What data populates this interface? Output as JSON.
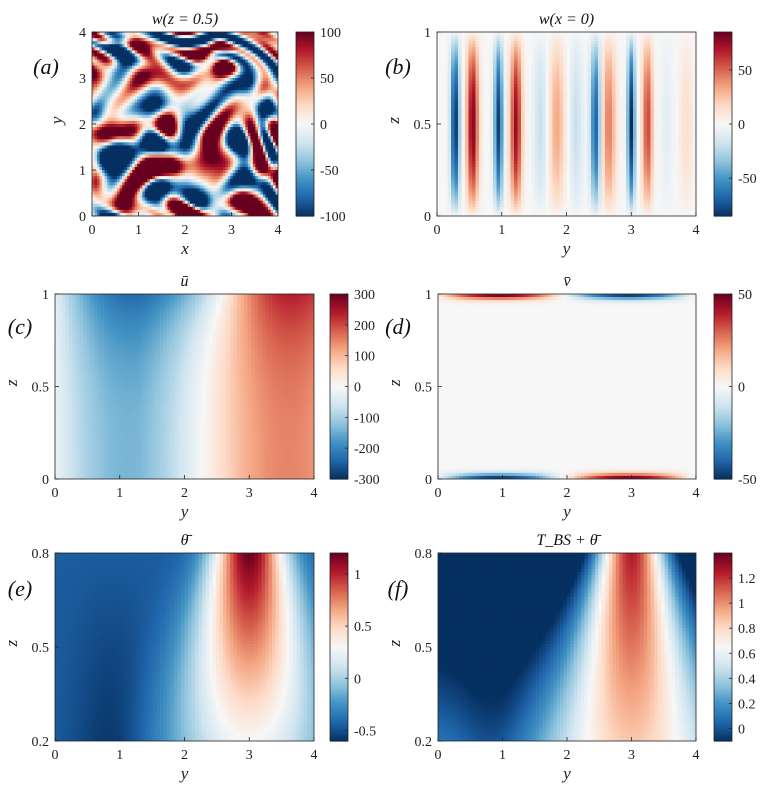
{
  "colormap": {
    "low": "#053061",
    "mid": "#f7f7f7",
    "high": "#67001f"
  },
  "chart_data": [
    {
      "panel": "(a)",
      "type": "heatmap",
      "title": "w(z = 0.5)",
      "xlabel": "x",
      "ylabel": "y",
      "xlim": [
        0,
        4
      ],
      "ylim": [
        0,
        4
      ],
      "xticks": [
        "0",
        "1",
        "2",
        "3",
        "4"
      ],
      "yticks": [
        "0",
        "1",
        "2",
        "3",
        "4"
      ],
      "clim": [
        -100,
        100
      ],
      "cbar_ticks": [
        "-100",
        "-50",
        "0",
        "50",
        "100"
      ],
      "pattern": "turbulent"
    },
    {
      "panel": "(b)",
      "type": "heatmap",
      "title": "w(x = 0)",
      "xlabel": "y",
      "ylabel": "z",
      "xlim": [
        0,
        4
      ],
      "ylim": [
        0,
        1
      ],
      "xticks": [
        "0",
        "1",
        "2",
        "3",
        "4"
      ],
      "yticks": [
        "0",
        "0.5",
        "1"
      ],
      "clim": [
        -85,
        85
      ],
      "cbar_ticks": [
        "-50",
        "0",
        "50"
      ],
      "pattern": "vertical-stripes"
    },
    {
      "panel": "(c)",
      "type": "heatmap",
      "title": "ū",
      "xlabel": "y",
      "ylabel": "z",
      "xlim": [
        0,
        4
      ],
      "ylim": [
        0,
        1
      ],
      "xticks": [
        "0",
        "1",
        "2",
        "3",
        "4"
      ],
      "yticks": [
        "0",
        "0.5",
        "1"
      ],
      "clim": [
        -300,
        300
      ],
      "cbar_ticks": [
        "-300",
        "-200",
        "-100",
        "0",
        "100",
        "200",
        "300"
      ],
      "pattern": "ubar"
    },
    {
      "panel": "(d)",
      "type": "heatmap",
      "title": "v̄",
      "xlabel": "y",
      "ylabel": "z",
      "xlim": [
        0,
        4
      ],
      "ylim": [
        0,
        1
      ],
      "xticks": [
        "0",
        "1",
        "2",
        "3",
        "4"
      ],
      "yticks": [
        "0",
        "0.5",
        "1"
      ],
      "clim": [
        -50,
        50
      ],
      "cbar_ticks": [
        "-50",
        "0",
        "50"
      ],
      "pattern": "vbar"
    },
    {
      "panel": "(e)",
      "type": "heatmap",
      "title": "θ̄",
      "xlabel": "y",
      "ylabel": "z",
      "xlim": [
        0,
        4
      ],
      "ylim": [
        0.2,
        0.8
      ],
      "xticks": [
        "0",
        "1",
        "2",
        "3",
        "4"
      ],
      "yticks": [
        "0.2",
        "0.5",
        "0.8"
      ],
      "clim": [
        -0.6,
        1.2
      ],
      "cbar_ticks": [
        "-0.5",
        "0",
        "0.5",
        "1"
      ],
      "pattern": "thetabar"
    },
    {
      "panel": "(f)",
      "type": "heatmap",
      "title": "T_BS + θ̄",
      "xlabel": "y",
      "ylabel": "z",
      "xlim": [
        0,
        4
      ],
      "ylim": [
        0.2,
        0.8
      ],
      "xticks": [
        "0",
        "1",
        "2",
        "3",
        "4"
      ],
      "yticks": [
        "0.2",
        "0.5",
        "0.8"
      ],
      "clim": [
        -0.1,
        1.4
      ],
      "cbar_ticks": [
        "0",
        "0.2",
        "0.4",
        "0.6",
        "0.8",
        "1",
        "1.2"
      ],
      "pattern": "tbs"
    }
  ]
}
